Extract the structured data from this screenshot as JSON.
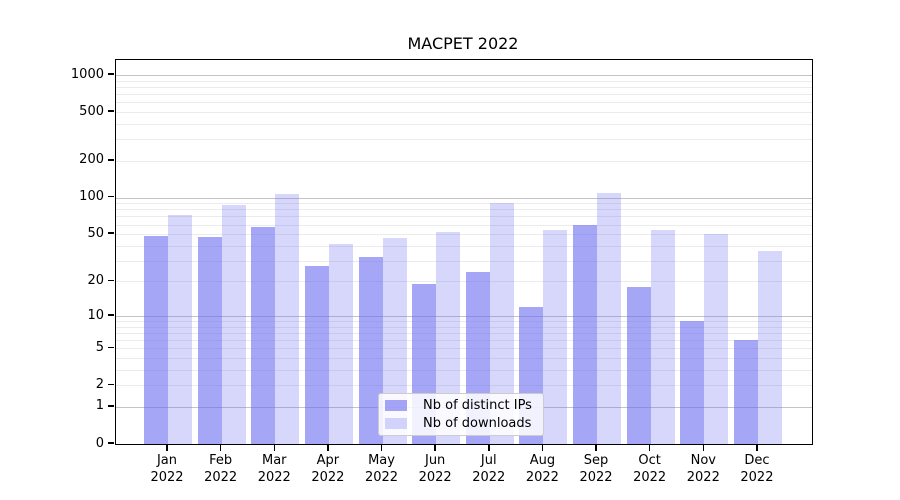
{
  "title": "MACPET 2022",
  "chart_data": {
    "type": "bar",
    "title": "MACPET 2022",
    "categories": [
      "Jan 2022",
      "Feb 2022",
      "Mar 2022",
      "Apr 2022",
      "May 2022",
      "Jun 2022",
      "Jul 2022",
      "Aug 2022",
      "Sep 2022",
      "Oct 2022",
      "Nov 2022",
      "Dec 2022"
    ],
    "series": [
      {
        "name": "Nb of distinct IPs",
        "values": [
          48,
          47,
          57,
          27,
          32,
          19,
          24,
          12,
          60,
          18,
          9,
          6
        ]
      },
      {
        "name": "Nb of downloads",
        "values": [
          72,
          87,
          107,
          41,
          46,
          52,
          90,
          54,
          109,
          54,
          50,
          36
        ]
      }
    ],
    "xlabel": "",
    "ylabel": "",
    "yscale": "symlog(log1p)",
    "ylim": [
      0,
      1330
    ],
    "yticks": [
      1000,
      500,
      200,
      100,
      50,
      20,
      10,
      5,
      2,
      1,
      0
    ],
    "y_major_gridlines": [
      1,
      10,
      100,
      1000
    ],
    "y_minor_gridlines": [
      2,
      3,
      4,
      5,
      6,
      7,
      8,
      9,
      20,
      30,
      40,
      50,
      60,
      70,
      80,
      90,
      200,
      300,
      400,
      500,
      600,
      700,
      800,
      900
    ],
    "grid": true,
    "legend_position": "bottom-center-inside",
    "colors": {
      "distinct_ips": "rgba(107,107,240,0.60)",
      "downloads": "rgba(107,107,240,0.27)",
      "major_grid": "#c4c4c4",
      "minor_grid": "#ebebeb",
      "axis": "#000000"
    }
  }
}
